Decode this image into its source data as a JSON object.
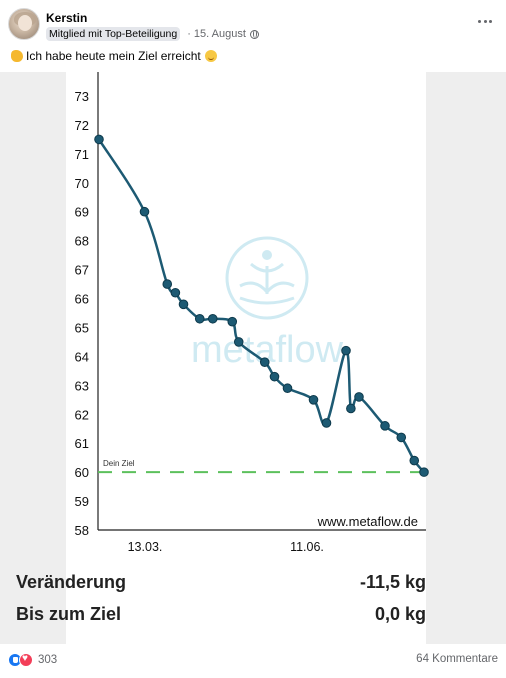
{
  "post": {
    "author": "Kerstin",
    "badge": "Mitglied mit Top-Beteiligung",
    "separator": "·",
    "date": "15. August",
    "text": "Ich habe heute mein Ziel erreicht"
  },
  "icons": {
    "audience": "globe-icon",
    "menu": "more-dots-icon",
    "emoji_start": "flexed-biceps-icon",
    "emoji_end": "smiling-face-with-hearts-icon",
    "reactions": [
      "like-icon",
      "love-icon"
    ]
  },
  "chart_data": {
    "type": "line",
    "y_ticks": [
      "73",
      "72",
      "71",
      "70",
      "69",
      "68",
      "67",
      "66",
      "65",
      "64",
      "63",
      "62",
      "61",
      "60",
      "59",
      "58"
    ],
    "x_tick_labels": [
      "13.03.",
      "11.06."
    ],
    "ylim": [
      58,
      73
    ],
    "line_color": "#1d5a73",
    "goal_line": {
      "value": 60,
      "label": "Dein Ziel",
      "color": "#5cc05c"
    },
    "watermark": "metaflow",
    "source_label": "www.metaflow.de",
    "points": [
      {
        "x": 0,
        "y": 71.5
      },
      {
        "x": 14,
        "y": 69.0
      },
      {
        "x": 21,
        "y": 66.5
      },
      {
        "x": 23.5,
        "y": 66.2
      },
      {
        "x": 26,
        "y": 65.8
      },
      {
        "x": 31,
        "y": 65.3
      },
      {
        "x": 35,
        "y": 65.3
      },
      {
        "x": 41,
        "y": 65.2
      },
      {
        "x": 43,
        "y": 64.5
      },
      {
        "x": 51,
        "y": 63.8
      },
      {
        "x": 54,
        "y": 63.3
      },
      {
        "x": 58,
        "y": 62.9
      },
      {
        "x": 66,
        "y": 62.5
      },
      {
        "x": 70,
        "y": 61.7
      },
      {
        "x": 76,
        "y": 64.2
      },
      {
        "x": 77.5,
        "y": 62.2
      },
      {
        "x": 80,
        "y": 62.6
      },
      {
        "x": 88,
        "y": 61.6
      },
      {
        "x": 93,
        "y": 61.2
      },
      {
        "x": 97,
        "y": 60.4
      },
      {
        "x": 100,
        "y": 60.0
      }
    ]
  },
  "stats": {
    "change_label": "Veränderung",
    "change_value": "-11,5 kg",
    "goal_label": "Bis zum Ziel",
    "goal_value": "0,0 kg"
  },
  "footer": {
    "reaction_count": "303",
    "comments": "64 Kommentare"
  }
}
